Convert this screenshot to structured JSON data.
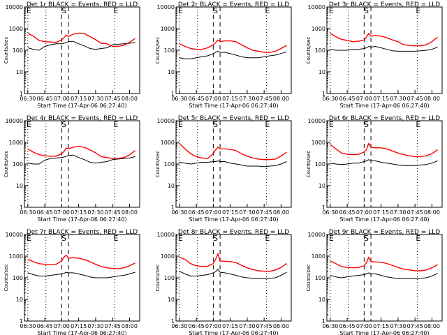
{
  "chart_data": {
    "type": "line",
    "layout": "3x3 grid of panels",
    "y_scale": "log",
    "ylim": [
      1,
      10000
    ],
    "ylabel": "Counts/sec",
    "xlabel": "Start Time (17-Apr-06 06:27:40)",
    "xlim": [
      "06:27:40",
      "08:09:00"
    ],
    "x_tick_labels": [
      "06:30",
      "06:45",
      "07:00",
      "07:15",
      "07:30",
      "07:45",
      "08:00"
    ],
    "y_tick_labels": [
      "1",
      "10",
      "100",
      "1000",
      "10000"
    ],
    "colors": {
      "events": "#000000",
      "lld": "#ff0000"
    },
    "markers": [
      {
        "label": "E",
        "time": "06:30",
        "style": "dotted"
      },
      {
        "label": "",
        "time": "06:46",
        "style": "dotted"
      },
      {
        "label": "",
        "time": "07:00",
        "style": "dashed"
      },
      {
        "label": "S",
        "time": "07:01"
      },
      {
        "label": "",
        "time": "07:06",
        "style": "dashed"
      },
      {
        "label": "E",
        "time": "07:47",
        "style": "dotted"
      }
    ],
    "time_samples": [
      "06:30",
      "06:35",
      "06:40",
      "06:45",
      "06:50",
      "06:55",
      "07:00",
      "07:02",
      "07:04",
      "07:06",
      "07:10",
      "07:15",
      "07:20",
      "07:25",
      "07:30",
      "07:35",
      "07:40",
      "07:45",
      "07:50",
      "07:55",
      "08:00",
      "08:05"
    ],
    "panels": [
      {
        "title": "Det 1r BLACK = Events, RED = LLD",
        "series": [
          {
            "name": "Events",
            "color": "#000000",
            "values": [
              130,
              110,
              100,
              150,
              180,
              200,
              200,
              210,
              230,
              250,
              260,
              200,
              160,
              120,
              110,
              120,
              130,
              180,
              190,
              200,
              210,
              230
            ]
          },
          {
            "name": "LLD",
            "color": "#ff0000",
            "values": [
              600,
              450,
              280,
              250,
              240,
              230,
              300,
              380,
              500,
              430,
              550,
              620,
              590,
              430,
              310,
              210,
              200,
              150,
              150,
              170,
              230,
              350
            ]
          }
        ]
      },
      {
        "title": "Det 2r BLACK = Events, RED = LLD",
        "series": [
          {
            "name": "Events",
            "color": "#000000",
            "values": [
              45,
              40,
              40,
              45,
              50,
              55,
              70,
              80,
              90,
              80,
              80,
              70,
              60,
              50,
              45,
              45,
              45,
              50,
              55,
              60,
              70,
              85
            ]
          },
          {
            "name": "LLD",
            "color": "#ff0000",
            "values": [
              200,
              150,
              120,
              110,
              110,
              130,
              180,
              220,
              300,
              250,
              270,
              270,
              250,
              180,
              130,
              100,
              90,
              80,
              80,
              90,
              120,
              170
            ]
          }
        ]
      },
      {
        "title": "Det 3r BLACK = Events, RED = LLD",
        "series": [
          {
            "name": "Events",
            "color": "#000000",
            "values": [
              110,
              100,
              100,
              100,
              110,
              110,
              120,
              130,
              150,
              140,
              150,
              130,
              110,
              95,
              90,
              90,
              90,
              90,
              95,
              100,
              110,
              140
            ]
          },
          {
            "name": "LLD",
            "color": "#ff0000",
            "values": [
              600,
              420,
              320,
              280,
              250,
              260,
              300,
              400,
              600,
              450,
              480,
              450,
              380,
              300,
              250,
              180,
              170,
              160,
              160,
              180,
              250,
              400
            ]
          }
        ]
      },
      {
        "title": "Det 4r BLACK = Events, RED = LLD",
        "series": [
          {
            "name": "Events",
            "color": "#000000",
            "values": [
              110,
              100,
              100,
              150,
              180,
              190,
              200,
              210,
              230,
              250,
              260,
              200,
              160,
              120,
              110,
              120,
              130,
              160,
              170,
              180,
              190,
              220
            ]
          },
          {
            "name": "LLD",
            "color": "#ff0000",
            "values": [
              500,
              350,
              270,
              240,
              230,
              230,
              300,
              380,
              550,
              500,
              600,
              650,
              600,
              450,
              330,
              220,
              200,
              180,
              180,
              200,
              260,
              420
            ]
          }
        ]
      },
      {
        "title": "Det 5r BLACK = Events, RED = LLD",
        "series": [
          {
            "name": "Events",
            "color": "#000000",
            "values": [
              120,
              110,
              100,
              110,
              120,
              120,
              130,
              130,
              140,
              130,
              130,
              110,
              100,
              90,
              80,
              80,
              80,
              75,
              80,
              85,
              100,
              130
            ]
          },
          {
            "name": "LLD",
            "color": "#ff0000",
            "values": [
              900,
              500,
              300,
              220,
              190,
              180,
              300,
              450,
              600,
              500,
              500,
              480,
              420,
              300,
              230,
              190,
              170,
              160,
              160,
              170,
              230,
              360
            ]
          }
        ]
      },
      {
        "title": "Det 6r BLACK = Events, RED = LLD",
        "series": [
          {
            "name": "Events",
            "color": "#000000",
            "values": [
              110,
              100,
              95,
              100,
              110,
              110,
              130,
              140,
              160,
              140,
              140,
              120,
              110,
              100,
              90,
              85,
              85,
              85,
              90,
              95,
              110,
              140
            ]
          },
          {
            "name": "LLD",
            "color": "#ff0000",
            "values": [
              800,
              500,
              320,
              280,
              270,
              280,
              360,
              460,
              900,
              600,
              560,
              560,
              500,
              400,
              320,
              270,
              240,
              220,
              220,
              240,
              300,
              460
            ]
          }
        ]
      },
      {
        "title": "Det 7r BLACK = Events, RED = LLD",
        "series": [
          {
            "name": "Events",
            "color": "#000000",
            "values": [
              170,
              140,
              120,
              120,
              130,
              140,
              150,
              160,
              180,
              170,
              170,
              150,
              130,
              110,
              100,
              100,
              100,
              110,
              120,
              130,
              150,
              180
            ]
          },
          {
            "name": "LLD",
            "color": "#ff0000",
            "values": [
              700,
              550,
              450,
              420,
              400,
              420,
              600,
              900,
              1100,
              800,
              850,
              800,
              700,
              550,
              420,
              330,
              290,
              270,
              260,
              290,
              360,
              480
            ]
          }
        ]
      },
      {
        "title": "Det 8r BLACK = Events, RED = LLD",
        "series": [
          {
            "name": "Events",
            "color": "#000000",
            "values": [
              200,
              150,
              120,
              120,
              130,
              140,
              170,
              190,
              250,
              180,
              170,
              150,
              130,
              110,
              100,
              95,
              90,
              90,
              95,
              100,
              130,
              180
            ]
          },
          {
            "name": "LLD",
            "color": "#ff0000",
            "values": [
              900,
              700,
              450,
              360,
              330,
              340,
              450,
              700,
              1300,
              600,
              580,
              560,
              500,
              380,
              290,
              240,
              210,
              200,
              200,
              230,
              300,
              460
            ]
          }
        ]
      },
      {
        "title": "Det 9r BLACK = Events, RED = LLD",
        "series": [
          {
            "name": "Events",
            "color": "#000000",
            "values": [
              130,
              110,
              100,
              110,
              120,
              130,
              140,
              150,
              170,
              150,
              150,
              130,
              110,
              100,
              90,
              90,
              90,
              90,
              95,
              100,
              120,
              160
            ]
          },
          {
            "name": "LLD",
            "color": "#ff0000",
            "values": [
              600,
              450,
              330,
              300,
              290,
              300,
              360,
              500,
              900,
              550,
              540,
              520,
              460,
              370,
              300,
              250,
              230,
              210,
              210,
              230,
              290,
              400
            ]
          }
        ]
      }
    ]
  }
}
